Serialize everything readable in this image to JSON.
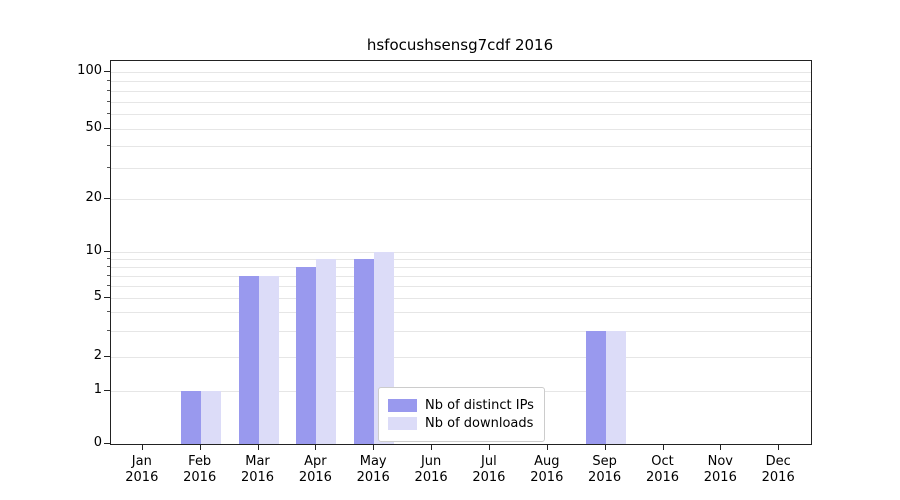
{
  "title": "hsfocushsensg7cdf 2016",
  "chart_data": {
    "type": "bar",
    "title": "hsfocushsensg7cdf 2016",
    "categories": [
      "Jan",
      "Feb",
      "Mar",
      "Apr",
      "May",
      "Jun",
      "Jul",
      "Aug",
      "Sep",
      "Oct",
      "Nov",
      "Dec"
    ],
    "year": "2016",
    "series": [
      {
        "name": "Nb of distinct IPs",
        "color": "#9999ee",
        "values": [
          0,
          1,
          7,
          8,
          9,
          0,
          0,
          0,
          3,
          0,
          0,
          0
        ]
      },
      {
        "name": "Nb of downloads",
        "color": "#dcdcf8",
        "values": [
          0,
          1,
          7,
          9,
          10,
          0,
          0,
          0,
          3,
          0,
          0,
          0
        ]
      }
    ],
    "yticks": [
      0,
      1,
      2,
      5,
      10,
      20,
      50,
      100
    ],
    "grid_values": [
      1,
      2,
      3,
      4,
      5,
      6,
      7,
      8,
      9,
      10,
      20,
      30,
      40,
      50,
      60,
      70,
      80,
      90,
      100
    ],
    "yscale": "symlog",
    "ylim": [
      0,
      120
    ],
    "grid": true,
    "legend_position": "lower center",
    "xlabel": "",
    "ylabel": ""
  },
  "colors": {
    "grid": "#e6e6e6",
    "frame": "#222222",
    "background": "#ffffff"
  }
}
